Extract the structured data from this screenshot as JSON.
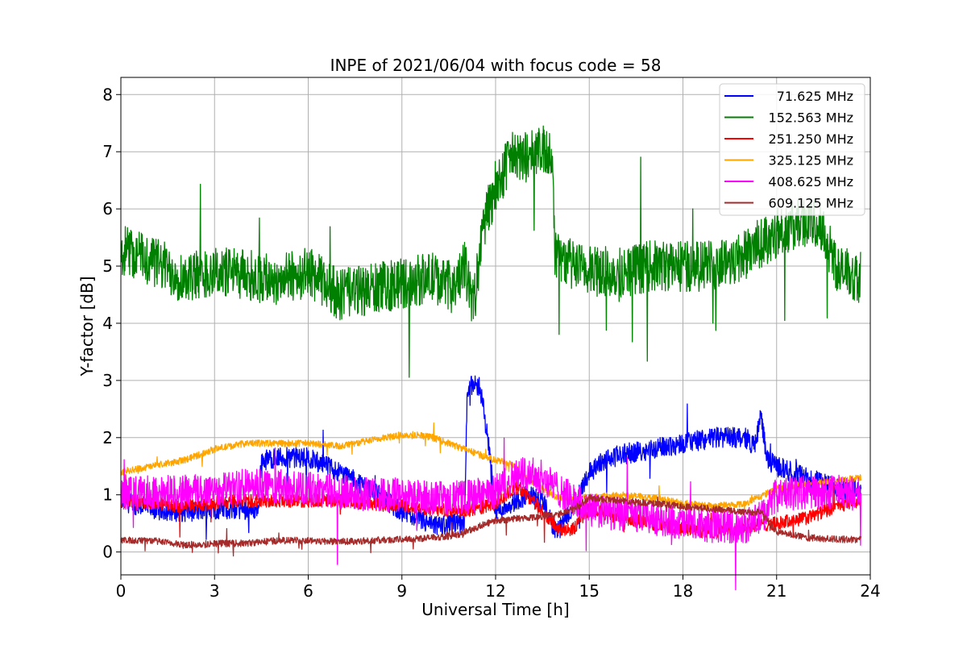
{
  "chart_data": {
    "type": "line",
    "title": "INPE of 2021/06/04 with focus code = 58",
    "xlabel": "Universal Time [h]",
    "ylabel": "Y-factor [dB]",
    "xlim": [
      0,
      24
    ],
    "ylim": [
      -0.4,
      8.3
    ],
    "xticks": [
      0,
      3,
      6,
      9,
      12,
      15,
      18,
      21,
      24
    ],
    "yticks": [
      0,
      1,
      2,
      3,
      4,
      5,
      6,
      7,
      8
    ],
    "grid": true,
    "legend_position": "top-right",
    "series": [
      {
        "name": "71.625 MHz",
        "color": "#0000ff",
        "noise": 0.18,
        "x": [
          0,
          1,
          2,
          3,
          4,
          4.4,
          4.5,
          5,
          6,
          7,
          8,
          9,
          10,
          10.8,
          11.0,
          11.1,
          11.5,
          11.8,
          12.0,
          12.5,
          13,
          13.5,
          13.8,
          14,
          14.5,
          15,
          15.5,
          16,
          17,
          18,
          19,
          20,
          20.3,
          20.5,
          20.7,
          21,
          22,
          23,
          23.7
        ],
        "y": [
          0.9,
          0.75,
          0.7,
          0.75,
          0.75,
          0.75,
          1.6,
          1.65,
          1.65,
          1.4,
          1.1,
          0.7,
          0.45,
          0.5,
          0.5,
          2.9,
          2.9,
          1.8,
          0.7,
          0.85,
          1.0,
          0.9,
          0.5,
          0.35,
          0.85,
          1.4,
          1.6,
          1.7,
          1.8,
          1.9,
          2.0,
          2.0,
          1.85,
          2.4,
          1.6,
          1.5,
          1.3,
          1.1,
          1.1
        ]
      },
      {
        "name": "152.563 MHz",
        "color": "#008000",
        "noise": 0.45,
        "x": [
          0,
          1,
          2,
          3,
          4,
          5,
          6,
          7,
          8,
          9,
          10,
          10.7,
          11.0,
          11.3,
          11.6,
          12.0,
          12.5,
          13.0,
          13.5,
          13.8,
          13.9,
          14.5,
          15,
          16,
          17,
          18,
          19,
          20,
          21,
          22,
          22.5,
          23,
          23.7
        ],
        "y": [
          5.3,
          5.1,
          4.8,
          4.9,
          4.85,
          4.75,
          4.9,
          4.5,
          4.6,
          4.7,
          4.8,
          4.6,
          5.0,
          4.3,
          5.7,
          6.4,
          6.9,
          6.9,
          7.0,
          7.0,
          5.2,
          5.0,
          4.9,
          4.9,
          5.0,
          5.0,
          5.0,
          5.2,
          5.6,
          5.8,
          5.6,
          4.9,
          4.8
        ]
      },
      {
        "name": "251.250 MHz",
        "color": "#ff0000",
        "noise": 0.12,
        "x": [
          0,
          1,
          2,
          3,
          4,
          5,
          6,
          7,
          8,
          9,
          10,
          11,
          12,
          12.7,
          13,
          13.7,
          14,
          14.5,
          15,
          16,
          17,
          18,
          19,
          20,
          21,
          22,
          23,
          23.7
        ],
        "y": [
          0.9,
          0.85,
          0.8,
          0.85,
          0.9,
          0.9,
          0.9,
          0.9,
          0.85,
          0.8,
          0.75,
          0.7,
          0.85,
          1.15,
          1.0,
          0.6,
          0.4,
          0.4,
          0.75,
          0.6,
          0.5,
          0.4,
          0.35,
          0.45,
          0.5,
          0.6,
          0.8,
          0.9
        ]
      },
      {
        "name": "325.125 MHz",
        "color": "#ffa500",
        "noise": 0.06,
        "x": [
          0,
          1,
          2,
          3,
          4,
          5,
          6,
          7,
          8,
          9,
          9.5,
          10,
          10.5,
          11,
          11.5,
          12,
          12.5,
          13,
          13.5,
          14,
          15,
          16,
          17,
          18,
          19,
          20,
          21,
          22,
          23,
          23.7
        ],
        "y": [
          1.4,
          1.5,
          1.6,
          1.8,
          1.9,
          1.9,
          1.9,
          1.85,
          1.95,
          2.05,
          2.05,
          2.0,
          1.9,
          1.8,
          1.7,
          1.6,
          1.55,
          1.3,
          1.1,
          0.95,
          0.95,
          1.0,
          0.95,
          0.85,
          0.8,
          0.85,
          1.1,
          1.2,
          1.25,
          1.3
        ]
      },
      {
        "name": "408.625 MHz",
        "color": "#ff00ff",
        "noise": 0.3,
        "x": [
          0,
          1,
          2,
          3,
          4,
          5,
          6,
          7,
          8,
          9,
          10,
          11,
          12,
          12.5,
          13,
          13.5,
          14,
          14.5,
          15,
          16,
          17,
          18,
          19,
          20,
          20.5,
          21,
          22,
          23,
          23.7
        ],
        "y": [
          1.0,
          1.05,
          1.05,
          1.1,
          1.15,
          1.15,
          1.1,
          1.05,
          1.0,
          1.0,
          0.95,
          0.95,
          1.05,
          1.3,
          1.4,
          1.3,
          1.1,
          0.9,
          0.75,
          0.65,
          0.6,
          0.5,
          0.45,
          0.45,
          0.6,
          1.0,
          1.05,
          1.05,
          1.0
        ]
      },
      {
        "name": "609.125 MHz",
        "color": "#a52a2a",
        "noise": 0.06,
        "x": [
          0,
          1,
          2,
          3,
          4,
          5,
          6,
          7,
          8,
          9,
          10,
          10.8,
          11.5,
          12,
          13,
          14,
          14.5,
          15,
          16,
          17,
          18,
          19,
          20,
          20.5,
          21,
          22,
          23,
          23.7
        ],
        "y": [
          0.2,
          0.2,
          0.12,
          0.15,
          0.15,
          0.2,
          0.2,
          0.18,
          0.2,
          0.22,
          0.25,
          0.3,
          0.45,
          0.55,
          0.6,
          0.65,
          0.75,
          0.95,
          0.9,
          0.85,
          0.8,
          0.75,
          0.7,
          0.7,
          0.35,
          0.25,
          0.22,
          0.22
        ]
      }
    ]
  }
}
